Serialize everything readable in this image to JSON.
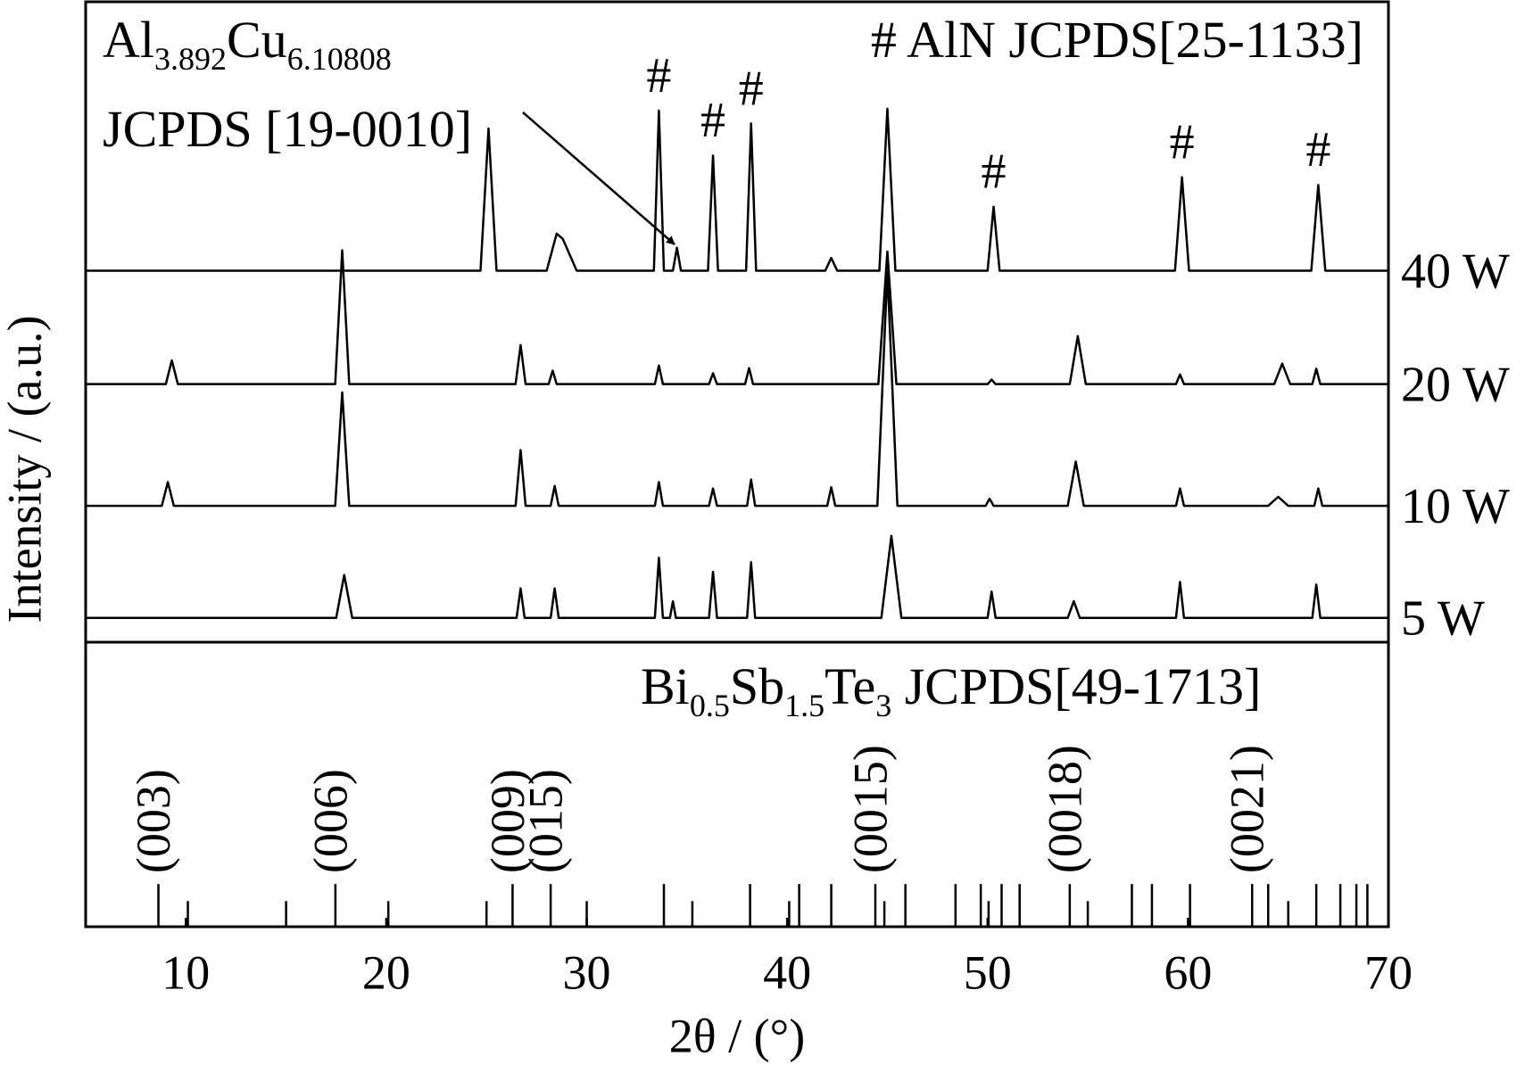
{
  "chart_data": [
    {
      "type": "line",
      "y_label": "Intensity / (a.u.)",
      "xlim": [
        5,
        70
      ],
      "ylim": [
        0,
        100
      ],
      "title_parts": [
        {
          "text": "Al"
        },
        {
          "text": "3.892",
          "sub": true
        },
        {
          "text": "Cu"
        },
        {
          "text": "6.10808",
          "sub": true
        }
      ],
      "subtitle": "JCPDS [19-0010]",
      "legend_note": "# AlN JCPDS[25-1133]",
      "peak_markers": {
        "text": "#",
        "x": [
          33.6,
          36.3,
          38.2,
          50.3,
          59.7,
          66.5
        ]
      },
      "series": [
        {
          "name": "40 W",
          "color": "#000000",
          "x": [
            5,
            24.7,
            25.1,
            25.5,
            28.0,
            28.5,
            28.8,
            29.5,
            33.35,
            33.6,
            33.85,
            34.3,
            34.5,
            34.7,
            36.05,
            36.3,
            36.55,
            37.95,
            38.2,
            38.45,
            41.9,
            42.2,
            42.5,
            44.6,
            45.0,
            45.4,
            50.0,
            50.3,
            50.6,
            59.35,
            59.7,
            60.05,
            66.15,
            66.5,
            66.85,
            70
          ],
          "values": [
            58,
            58,
            80.2,
            58,
            58,
            63.8,
            63,
            58,
            58,
            83,
            58,
            58,
            61.6,
            58,
            58,
            76,
            58,
            58,
            81,
            58,
            58,
            60,
            58,
            58,
            83.3,
            58,
            58,
            68,
            58,
            58,
            72.6,
            58,
            58,
            71.4,
            58,
            58
          ]
        },
        {
          "name": "20 W",
          "color": "#000000",
          "x": [
            5,
            9.0,
            9.3,
            9.6,
            17.45,
            17.8,
            18.15,
            26.45,
            26.7,
            26.95,
            28.1,
            28.3,
            28.5,
            33.4,
            33.6,
            33.8,
            36.1,
            36.3,
            36.5,
            37.9,
            38.1,
            38.3,
            44.55,
            45.0,
            45.45,
            50.0,
            50.2,
            50.4,
            54.1,
            54.5,
            54.9,
            59.4,
            59.6,
            59.8,
            64.3,
            64.7,
            65.1,
            66.2,
            66.4,
            66.6,
            70
          ],
          "values": [
            40.3,
            40.3,
            44,
            40.3,
            40.3,
            61.2,
            40.3,
            40.3,
            46.4,
            40.3,
            40.3,
            42.4,
            40.3,
            40.3,
            43.2,
            40.3,
            40.3,
            42,
            40.3,
            40.3,
            42.8,
            40.3,
            40.3,
            61,
            40.3,
            40.3,
            41,
            40.3,
            40.3,
            47.8,
            40.3,
            40.3,
            41.8,
            40.3,
            40.3,
            43.5,
            40.3,
            40.3,
            42.7,
            40.3,
            40.3
          ]
        },
        {
          "name": "10 W",
          "color": "#000000",
          "x": [
            5,
            8.8,
            9.1,
            9.4,
            17.45,
            17.8,
            18.15,
            26.45,
            26.7,
            26.95,
            28.2,
            28.4,
            28.6,
            33.4,
            33.6,
            33.8,
            36.1,
            36.3,
            36.5,
            38.0,
            38.2,
            38.4,
            42.0,
            42.2,
            42.4,
            44.5,
            45.0,
            45.5,
            49.9,
            50.1,
            50.3,
            54.0,
            54.4,
            54.8,
            59.4,
            59.6,
            59.8,
            64.0,
            64.5,
            65.0,
            66.3,
            66.5,
            66.7,
            70
          ],
          "values": [
            21.3,
            21.3,
            25,
            21.3,
            21.3,
            39,
            21.3,
            21.3,
            30,
            21.3,
            21.3,
            24.4,
            21.3,
            21.3,
            25,
            21.3,
            21.3,
            24,
            21.3,
            21.3,
            25.4,
            21.3,
            21.3,
            24.2,
            21.3,
            21.3,
            58,
            21.3,
            21.3,
            22.4,
            21.3,
            21.3,
            28.2,
            21.3,
            21.3,
            24,
            21.3,
            21.3,
            22.7,
            21.3,
            21.3,
            24,
            21.3,
            21.3
          ]
        },
        {
          "name": "5 W",
          "color": "#000000",
          "x": [
            5,
            17.5,
            17.9,
            18.3,
            26.5,
            26.7,
            26.9,
            28.2,
            28.4,
            28.6,
            33.4,
            33.6,
            33.8,
            34.15,
            34.3,
            34.45,
            36.1,
            36.3,
            36.5,
            38.0,
            38.2,
            38.4,
            44.7,
            45.2,
            45.7,
            50.0,
            50.2,
            50.4,
            54.0,
            54.3,
            54.6,
            59.4,
            59.6,
            59.8,
            66.2,
            66.4,
            66.6,
            70
          ],
          "values": [
            3.8,
            3.8,
            10.5,
            3.8,
            3.8,
            8.4,
            3.8,
            3.8,
            8.4,
            3.8,
            3.8,
            13.2,
            3.8,
            3.8,
            6.4,
            3.8,
            3.8,
            11,
            3.8,
            3.8,
            12.5,
            3.8,
            3.8,
            16.6,
            3.8,
            3.8,
            7.9,
            3.8,
            3.8,
            6.4,
            3.8,
            3.8,
            9.4,
            3.8,
            3.8,
            9,
            3.8,
            3.8
          ]
        }
      ]
    },
    {
      "type": "stick",
      "x_label": "2θ / (°)",
      "xlim": [
        5,
        70
      ],
      "ylim": [
        0,
        100
      ],
      "xticks": [
        10,
        20,
        30,
        40,
        50,
        60,
        70
      ],
      "title_parts": [
        {
          "text": "Bi"
        },
        {
          "text": "0.5",
          "sub": true
        },
        {
          "text": "Sb"
        },
        {
          "text": "1.5",
          "sub": true
        },
        {
          "text": "Te"
        },
        {
          "text": "3",
          "sub": true
        },
        {
          "text": " JCPDS[49-1713]"
        }
      ],
      "color": "#000000",
      "x": [
        8.63,
        10.1,
        15.0,
        17.46,
        20.1,
        25.0,
        26.3,
        28.2,
        30.0,
        33.85,
        35.27,
        38.15,
        40.1,
        40.6,
        42.2,
        44.4,
        44.85,
        45.9,
        48.4,
        49.66,
        50.05,
        50.7,
        51.6,
        54.1,
        55.0,
        57.2,
        58.2,
        60.1,
        63.2,
        64.0,
        65.0,
        66.4,
        67.6,
        68.4,
        68.95
      ],
      "values": [
        15,
        9,
        9,
        15,
        9,
        9,
        15,
        15,
        9,
        15,
        9,
        15,
        9,
        15,
        15,
        15,
        9,
        15,
        15,
        15,
        9,
        15,
        15,
        15,
        9,
        15,
        15,
        15,
        15,
        15,
        9,
        15,
        15,
        15,
        15
      ],
      "hkl": [
        "(003)",
        null,
        null,
        "(006)",
        null,
        null,
        "(009)",
        "(015)",
        null,
        null,
        null,
        null,
        null,
        null,
        null,
        "(0015)",
        null,
        null,
        null,
        null,
        null,
        null,
        null,
        "(0018)",
        null,
        null,
        null,
        null,
        "(0021)",
        null,
        null,
        null,
        null,
        null,
        null
      ]
    }
  ]
}
